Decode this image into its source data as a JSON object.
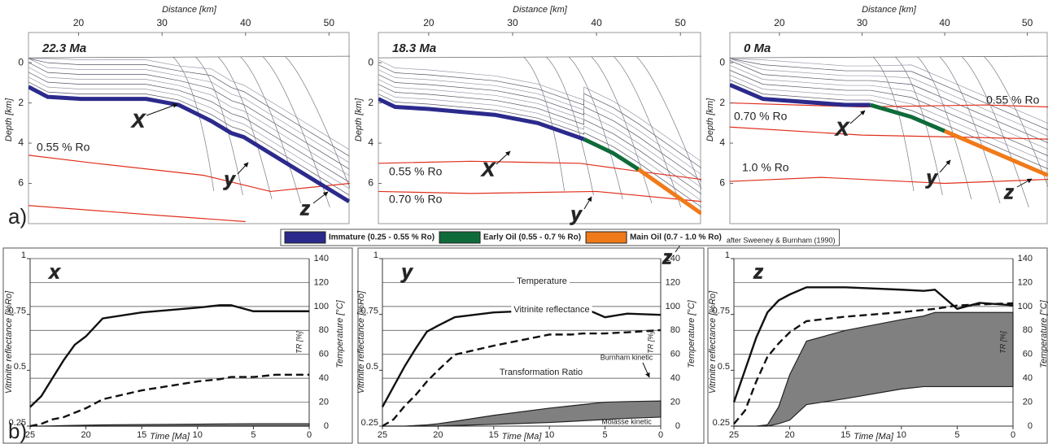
{
  "figure_labels": [
    "a)",
    "b)"
  ],
  "legend": {
    "items": [
      {
        "label": "Immature (0.25 - 0.55 % Ro)",
        "color": "#2b2a8c"
      },
      {
        "label": "Early Oil (0.55 - 0.7 % Ro)",
        "color": "#0f6b3a"
      },
      {
        "label": "Main Oil (0.7 - 1.0 % Ro)",
        "color": "#f07a1a"
      }
    ],
    "note": "after Sweeney & Burnham (1990)"
  },
  "chart_data": [
    {
      "type": "section",
      "title": "22.3 Ma",
      "x_label": "Distance [km]",
      "y_label": "Depth [km]",
      "xlim": [
        14,
        52.5
      ],
      "ylim": [
        8,
        -1.5
      ],
      "xticks": [
        20,
        30,
        40,
        50
      ],
      "yticks": [
        0,
        2,
        4,
        6
      ],
      "horizons": [
        {
          "color": "#2b2a8c",
          "x": [
            14,
            16.3,
            20.3,
            28.1,
            32,
            35.9,
            38.3,
            39.8,
            52.4
          ],
          "y": [
            1.2,
            1.7,
            1.8,
            1.8,
            2.1,
            2.9,
            3.5,
            3.7,
            6.9
          ]
        }
      ],
      "isolines": [
        {
          "label": "0.55 % Ro",
          "color": "#e0301e",
          "x": [
            14,
            22,
            35,
            43,
            52.5
          ],
          "y": [
            4.6,
            5.0,
            5.6,
            6.4,
            6.0
          ]
        },
        {
          "color": "#e0301e",
          "x": [
            14,
            30,
            40
          ],
          "y": [
            7.1,
            7.6,
            7.9
          ]
        }
      ],
      "markers": [
        "X",
        "y",
        "z"
      ]
    },
    {
      "type": "section",
      "title": "18.3 Ma",
      "x_label": "Distance [km]",
      "y_label": "Depth [km]",
      "xlim": [
        14,
        52.5
      ],
      "ylim": [
        8,
        -1.5
      ],
      "xticks": [
        20,
        30,
        40,
        50
      ],
      "yticks": [
        0,
        2,
        4,
        6
      ],
      "horizons": [
        {
          "color": "#2b2a8c",
          "x": [
            14,
            16,
            20,
            28,
            33,
            38.5
          ],
          "y": [
            1.8,
            2.2,
            2.3,
            2.6,
            3.0,
            3.8
          ]
        },
        {
          "color": "#0f6b3a",
          "x": [
            38.5,
            42,
            45
          ],
          "y": [
            3.8,
            4.5,
            5.3
          ]
        },
        {
          "color": "#f07a1a",
          "x": [
            45,
            52.5
          ],
          "y": [
            5.3,
            7.5
          ]
        }
      ],
      "isolines": [
        {
          "label": "0.55 % Ro",
          "color": "#e0301e",
          "x": [
            14,
            25,
            38,
            45,
            52.5
          ],
          "y": [
            5.0,
            4.9,
            5.0,
            5.4,
            5.8
          ]
        },
        {
          "label": "0.70 % Ro",
          "color": "#e0301e",
          "x": [
            14,
            25,
            40,
            52.5
          ],
          "y": [
            6.4,
            6.5,
            6.4,
            6.9
          ]
        }
      ],
      "markers": [
        "X",
        "y",
        "z"
      ]
    },
    {
      "type": "section",
      "title": "0 Ma",
      "x_label": "Distance [km]",
      "y_label": "Depth [km]",
      "xlim": [
        14,
        52.5
      ],
      "ylim": [
        8,
        -1.5
      ],
      "xticks": [
        20,
        30,
        40,
        50
      ],
      "yticks": [
        0,
        2,
        4,
        6
      ],
      "horizons": [
        {
          "color": "#2b2a8c",
          "x": [
            14,
            18,
            28,
            31
          ],
          "y": [
            1.1,
            1.8,
            2.1,
            2.1
          ]
        },
        {
          "color": "#0f6b3a",
          "x": [
            31,
            36,
            40
          ],
          "y": [
            2.1,
            2.7,
            3.4
          ]
        },
        {
          "color": "#f07a1a",
          "x": [
            40,
            52.5
          ],
          "y": [
            3.4,
            5.6
          ]
        }
      ],
      "isolines": [
        {
          "label": "0.70 % Ro",
          "color": "#e0301e",
          "x": [
            14,
            30,
            42,
            52.5
          ],
          "y": [
            3.2,
            3.6,
            3.7,
            3.8
          ]
        },
        {
          "label": "1.0 % Ro",
          "color": "#e0301e",
          "x": [
            14,
            25,
            40,
            52.5
          ],
          "y": [
            5.9,
            5.7,
            6.0,
            5.8
          ]
        },
        {
          "label": "0.55 % Ro",
          "color": "#e0301e",
          "x": [
            14,
            30,
            45,
            52.5
          ],
          "y": [
            2.0,
            2.2,
            2.1,
            2.2
          ]
        }
      ],
      "markers": [
        "X",
        "y",
        "z"
      ]
    },
    {
      "type": "line",
      "title": "x",
      "x_label": "Time [Ma]",
      "y_label": "Vitrinite reflectance [%Ro]",
      "y2_label": "Temperature [°C]",
      "tr_label": "TR [%]",
      "x": [
        25,
        24,
        23,
        22,
        21,
        20,
        18.5,
        15,
        10,
        8,
        7,
        5,
        3,
        0
      ],
      "xlim": [
        25,
        0
      ],
      "xticks": [
        25,
        20,
        15,
        10,
        5,
        0
      ],
      "ylim": [
        0.25,
        1
      ],
      "yticks": [
        0.25,
        0.5,
        0.75,
        1
      ],
      "y2lim": [
        0,
        140
      ],
      "y2ticks": [
        0,
        20,
        40,
        60,
        80,
        100,
        120,
        140
      ],
      "grid": true,
      "series": [
        {
          "color": "#111111",
          "axis": "y2",
          "style": "solid",
          "values": [
            16,
            25,
            40,
            55,
            68,
            75,
            90,
            95,
            99,
            101,
            101,
            96,
            96,
            96
          ]
        },
        {
          "color": "#111111",
          "style": "dashed",
          "values": [
            0.25,
            0.26,
            0.28,
            0.29,
            0.31,
            0.33,
            0.37,
            0.41,
            0.45,
            0.46,
            0.47,
            0.47,
            0.48,
            0.48
          ]
        }
      ],
      "band": {
        "axis": "y2",
        "color": "#808080",
        "lower": [
          0,
          0,
          0,
          0,
          0,
          0,
          0,
          0,
          0,
          0,
          0,
          0,
          0,
          0
        ],
        "upper": [
          0,
          0,
          0.2,
          0.4,
          0.6,
          0.8,
          1,
          1.3,
          1.6,
          1.8,
          1.9,
          2,
          2,
          2
        ]
      }
    },
    {
      "type": "line",
      "title": "y",
      "x_label": "Time [Ma]",
      "y_label": "Vitrinite reflectance [%Ro]",
      "y2_label": "Temperature [°C]",
      "tr_label": "TR [%]",
      "x": [
        25,
        24,
        23,
        22,
        21,
        20,
        18.5,
        15,
        10,
        8,
        7,
        5,
        3,
        0
      ],
      "xlim": [
        25,
        0
      ],
      "xticks": [
        25,
        20,
        15,
        10,
        5,
        0
      ],
      "ylim": [
        0.25,
        1
      ],
      "yticks": [
        0.25,
        0.5,
        0.75,
        1
      ],
      "y2lim": [
        0,
        140
      ],
      "y2ticks": [
        0,
        20,
        40,
        60,
        80,
        100,
        120,
        140
      ],
      "grid": true,
      "series": [
        {
          "color": "#111111",
          "axis": "y2",
          "style": "solid",
          "values": [
            16,
            33,
            50,
            65,
            79,
            84,
            91,
            95,
            97,
            99,
            99,
            91,
            94,
            93
          ]
        },
        {
          "color": "#111111",
          "style": "dashed",
          "values": [
            0.25,
            0.28,
            0.34,
            0.39,
            0.45,
            0.5,
            0.57,
            0.61,
            0.66,
            0.66,
            0.665,
            0.665,
            0.67,
            0.68
          ]
        }
      ],
      "band": {
        "axis": "y2",
        "color": "#808080",
        "lower": [
          0,
          0,
          0,
          0,
          0,
          0,
          0.5,
          1.5,
          3,
          4,
          4.5,
          5.5,
          6.5,
          7.5
        ],
        "upper": [
          0,
          0,
          0,
          0.5,
          1,
          2,
          4,
          9,
          15,
          17,
          18,
          20,
          20.5,
          21
        ]
      },
      "annotations": [
        "Temperature",
        "Vitrinite reflectance",
        "Transformation Ratio",
        "Burnham kinetic",
        "Molasse kinetic"
      ]
    },
    {
      "type": "line",
      "title": "z",
      "x_label": "Time [Ma]",
      "y_label": "Vitrinite reflectance [%Ro]",
      "y2_label": "Temperature [°C]",
      "tr_label": "TR [%]",
      "x": [
        25,
        24,
        23,
        22,
        21,
        20,
        18.5,
        15,
        10,
        8,
        7,
        5,
        3,
        0
      ],
      "xlim": [
        25,
        0
      ],
      "xticks": [
        25,
        20,
        15,
        10,
        5,
        0
      ],
      "ylim": [
        0.25,
        1
      ],
      "yticks": [
        0.25,
        0.5,
        0.75,
        1
      ],
      "y2lim": [
        0,
        140
      ],
      "y2ticks": [
        0,
        20,
        40,
        60,
        80,
        100,
        120,
        140
      ],
      "grid": true,
      "series": [
        {
          "color": "#111111",
          "axis": "y2",
          "style": "solid",
          "values": [
            20,
            47,
            74,
            95,
            105,
            110,
            116,
            116,
            114,
            113,
            114,
            98,
            103,
            101
          ]
        },
        {
          "color": "#111111",
          "style": "dashed",
          "values": [
            0.26,
            0.32,
            0.45,
            0.56,
            0.62,
            0.67,
            0.72,
            0.74,
            0.76,
            0.77,
            0.775,
            0.79,
            0.795,
            0.8
          ]
        }
      ],
      "band": {
        "axis": "y2",
        "color": "#808080",
        "lower": [
          0,
          0,
          0,
          0,
          2,
          5,
          18,
          23,
          31,
          33,
          33,
          33,
          33,
          33
        ],
        "upper": [
          0,
          0,
          0,
          1,
          16,
          43,
          71,
          80,
          89,
          92,
          95,
          95,
          95,
          95
        ]
      }
    }
  ]
}
